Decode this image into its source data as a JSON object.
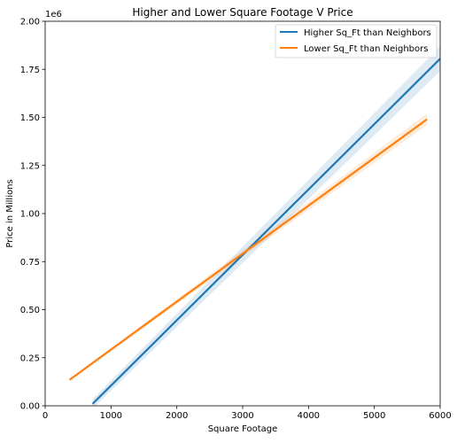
{
  "chart_data": {
    "type": "line",
    "title": "Higher and Lower Square Footage V Price",
    "xlabel": "Square Footage",
    "ylabel": "Price in Millions",
    "y_offset_label": "1e6",
    "xlim": [
      0,
      6000
    ],
    "ylim": [
      0,
      2000000
    ],
    "x_ticks": [
      0,
      1000,
      2000,
      3000,
      4000,
      5000,
      6000
    ],
    "x_tick_labels": [
      "0",
      "1000",
      "2000",
      "3000",
      "4000",
      "5000",
      "6000"
    ],
    "y_ticks": [
      0,
      250000,
      500000,
      750000,
      1000000,
      1250000,
      1500000,
      1750000,
      2000000
    ],
    "y_tick_labels": [
      "0.00",
      "0.25",
      "0.50",
      "0.75",
      "1.00",
      "1.25",
      "1.50",
      "1.75",
      "2.00"
    ],
    "grid": false,
    "legend_position": "top-right",
    "series": [
      {
        "name": "Higher Sq_Ft than Neighbors",
        "color": "#1f77b4",
        "x": [
          720,
          6000
        ],
        "y": [
          10000,
          1805000
        ],
        "ci_halfwidth": [
          25000,
          65000
        ]
      },
      {
        "name": "Lower Sq_Ft than Neighbors",
        "color": "#ff7f0e",
        "x": [
          370,
          5800
        ],
        "y": [
          135000,
          1490000
        ],
        "ci_halfwidth": [
          6000,
          30000
        ]
      }
    ]
  }
}
